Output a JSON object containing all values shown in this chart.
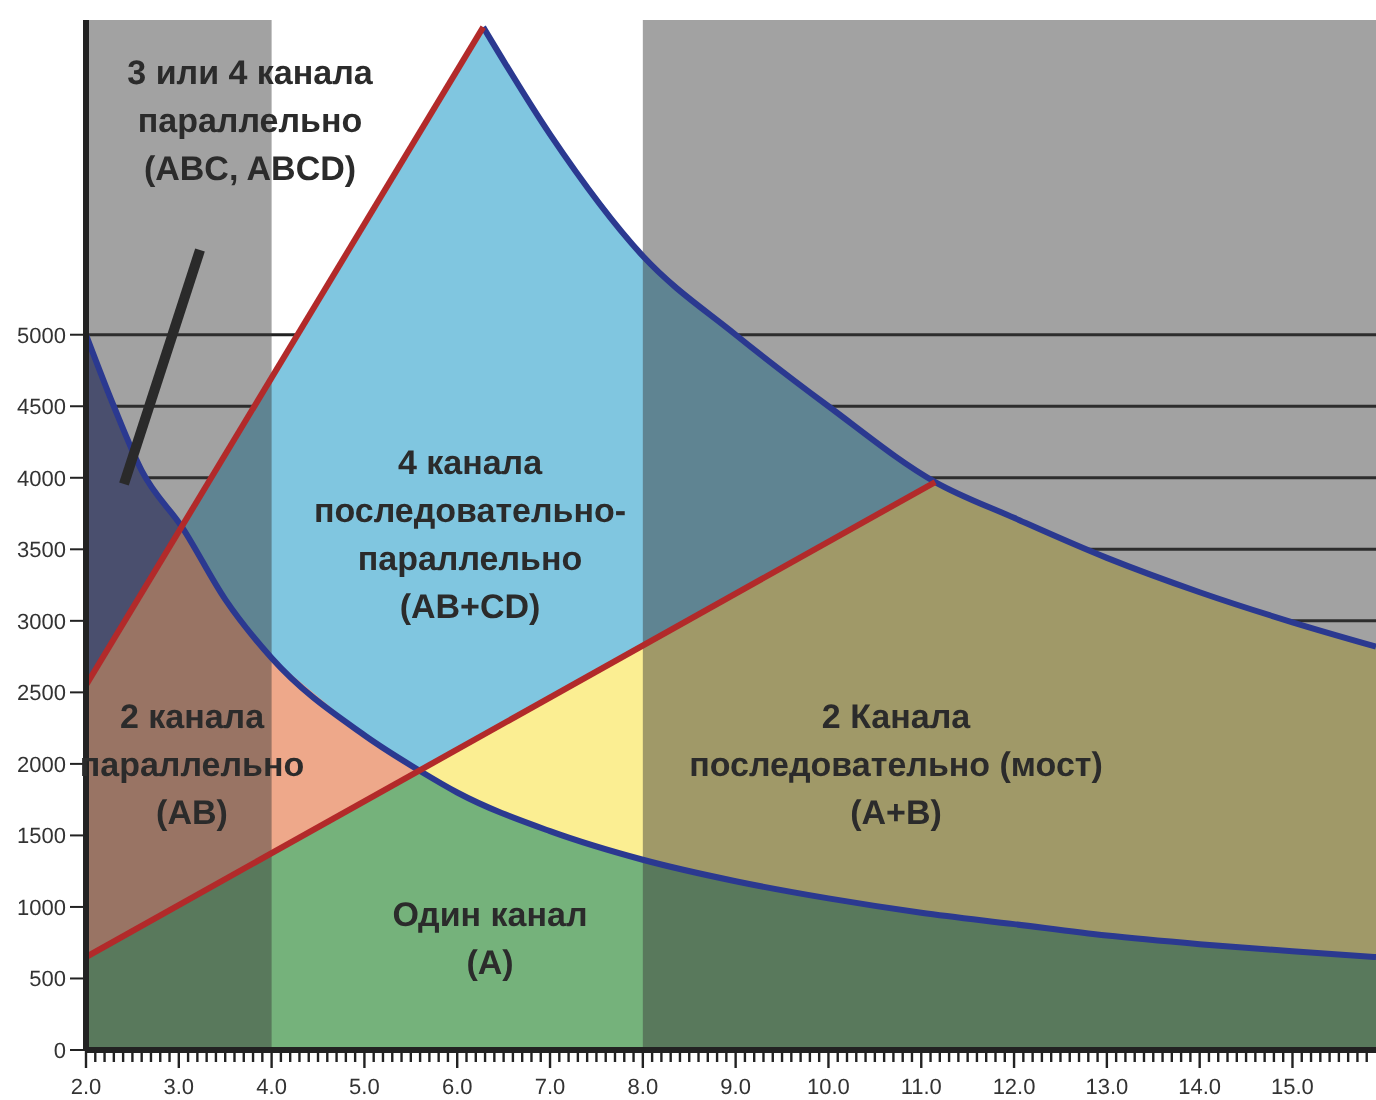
{
  "chart_data": {
    "type": "area",
    "series": [
      {
        "color": "#5a629d",
        "x": [
          2,
          2.3,
          2.6,
          3.04
        ],
        "values": [
          5000,
          4500,
          4050,
          3650
        ]
      },
      {
        "color": "#80c6e0",
        "x": [
          2,
          6.28,
          7,
          8,
          9,
          10,
          11.15
        ],
        "values": [
          2550,
          7150,
          6400,
          5550,
          5000,
          4500,
          3970
        ]
      },
      {
        "color": "#eea88a",
        "x": [
          2,
          3.04,
          3.5,
          4,
          5,
          5.6
        ],
        "values": [
          2550,
          3650,
          3150,
          2740,
          2200,
          1950
        ]
      },
      {
        "color": "#fbee92",
        "x": [
          5.6,
          11.15,
          12,
          13,
          14,
          15,
          15.9
        ],
        "values": [
          1950,
          3970,
          3720,
          3440,
          3200,
          2990,
          2820
        ]
      },
      {
        "color": "#75b27b",
        "x": [
          2,
          4,
          5,
          5.6,
          6,
          7,
          8,
          9,
          10,
          11,
          12,
          13,
          14,
          15,
          15.9
        ],
        "values": [
          650,
          1380,
          1740,
          1950,
          1800,
          1530,
          1330,
          1180,
          1060,
          960,
          880,
          800,
          740,
          690,
          650
        ]
      },
      {
        "type": "line",
        "color": "#2b3990",
        "x": [
          2,
          2.3,
          2.6,
          3.04,
          3.5,
          4,
          5,
          5.6,
          6,
          7,
          8,
          9,
          10,
          11,
          12,
          13,
          14,
          15,
          15.9
        ],
        "values": [
          5000,
          4500,
          4050,
          3650,
          3150,
          2740,
          2200,
          1950,
          1800,
          1530,
          1330,
          1180,
          1060,
          960,
          880,
          800,
          740,
          690,
          650
        ]
      },
      {
        "type": "line",
        "color": "#2b3990",
        "x": [
          6.28,
          7,
          8,
          9,
          10,
          11.15,
          12,
          13,
          14,
          15,
          15.9
        ],
        "values": [
          7150,
          6400,
          5550,
          5000,
          4500,
          3970,
          3720,
          3440,
          3200,
          2990,
          2820
        ]
      },
      {
        "type": "line",
        "color": "#b22a2a",
        "x": [
          2,
          6.28
        ],
        "values": [
          2550,
          7150
        ]
      },
      {
        "type": "line",
        "color": "#b22a2a",
        "x": [
          2,
          11.15
        ],
        "values": [
          650,
          3970
        ]
      }
    ],
    "bands": [
      {
        "axis": "x",
        "from": 2,
        "to": 4,
        "color": "#3a3a3a"
      },
      {
        "axis": "x",
        "from": 8,
        "to": 15.9,
        "color": "#3a3a3a"
      }
    ],
    "annotations": [
      "3 или 4 канала\nпараллельно\n(ABC, ABCD)",
      "4 канала\nпоследовательно-\nпараллельно\n(AB+CD)",
      "2 канала\nпараллельно\n(AB)",
      "2 Канала\nпоследовательно (мост)\n(A+B)",
      "Один канал\n(A)"
    ],
    "xlim": [
      2,
      15.9
    ],
    "xticks": [
      {
        "value": 2,
        "label": "2.0"
      },
      {
        "value": 2.1,
        "label": null
      },
      {
        "value": 2.2,
        "label": null
      },
      {
        "value": 2.3,
        "label": null
      },
      {
        "value": 2.4,
        "label": null
      },
      {
        "value": 2.5,
        "label": null
      },
      {
        "value": 2.6,
        "label": null
      },
      {
        "value": 2.7,
        "label": null
      },
      {
        "value": 2.8,
        "label": null
      },
      {
        "value": 2.9,
        "label": null
      },
      {
        "value": 3,
        "label": "3.0"
      },
      {
        "value": 3.1,
        "label": null
      },
      {
        "value": 3.2,
        "label": null
      },
      {
        "value": 3.3,
        "label": null
      },
      {
        "value": 3.4,
        "label": null
      },
      {
        "value": 3.5,
        "label": null
      },
      {
        "value": 3.6,
        "label": null
      },
      {
        "value": 3.7,
        "label": null
      },
      {
        "value": 3.8,
        "label": null
      },
      {
        "value": 3.9,
        "label": null
      },
      {
        "value": 4,
        "label": "4.0"
      },
      {
        "value": 4.1,
        "label": null
      },
      {
        "value": 4.2,
        "label": null
      },
      {
        "value": 4.3,
        "label": null
      },
      {
        "value": 4.4,
        "label": null
      },
      {
        "value": 4.5,
        "label": null
      },
      {
        "value": 4.6,
        "label": null
      },
      {
        "value": 4.7,
        "label": null
      },
      {
        "value": 4.8,
        "label": null
      },
      {
        "value": 4.9,
        "label": null
      },
      {
        "value": 5,
        "label": "5.0"
      },
      {
        "value": 5.1,
        "label": null
      },
      {
        "value": 5.2,
        "label": null
      },
      {
        "value": 5.3,
        "label": null
      },
      {
        "value": 5.4,
        "label": null
      },
      {
        "value": 5.5,
        "label": null
      },
      {
        "value": 5.6,
        "label": null
      },
      {
        "value": 5.7,
        "label": null
      },
      {
        "value": 5.8,
        "label": null
      },
      {
        "value": 5.9,
        "label": null
      },
      {
        "value": 6,
        "label": "6.0"
      },
      {
        "value": 6.1,
        "label": null
      },
      {
        "value": 6.2,
        "label": null
      },
      {
        "value": 6.3,
        "label": null
      },
      {
        "value": 6.4,
        "label": null
      },
      {
        "value": 6.5,
        "label": null
      },
      {
        "value": 6.6,
        "label": null
      },
      {
        "value": 6.7,
        "label": null
      },
      {
        "value": 6.8,
        "label": null
      },
      {
        "value": 6.9,
        "label": null
      },
      {
        "value": 7,
        "label": "7.0"
      },
      {
        "value": 7.1,
        "label": null
      },
      {
        "value": 7.2,
        "label": null
      },
      {
        "value": 7.3,
        "label": null
      },
      {
        "value": 7.4,
        "label": null
      },
      {
        "value": 7.5,
        "label": null
      },
      {
        "value": 7.6,
        "label": null
      },
      {
        "value": 7.7,
        "label": null
      },
      {
        "value": 7.8,
        "label": null
      },
      {
        "value": 7.9,
        "label": null
      },
      {
        "value": 8,
        "label": "8.0"
      },
      {
        "value": 8.1,
        "label": null
      },
      {
        "value": 8.2,
        "label": null
      },
      {
        "value": 8.3,
        "label": null
      },
      {
        "value": 8.4,
        "label": null
      },
      {
        "value": 8.5,
        "label": null
      },
      {
        "value": 8.6,
        "label": null
      },
      {
        "value": 8.7,
        "label": null
      },
      {
        "value": 8.8,
        "label": null
      },
      {
        "value": 8.9,
        "label": null
      },
      {
        "value": 9,
        "label": "9.0"
      },
      {
        "value": 9.1,
        "label": null
      },
      {
        "value": 9.2,
        "label": null
      },
      {
        "value": 9.3,
        "label": null
      },
      {
        "value": 9.4,
        "label": null
      },
      {
        "value": 9.5,
        "label": null
      },
      {
        "value": 9.6,
        "label": null
      },
      {
        "value": 9.7,
        "label": null
      },
      {
        "value": 9.8,
        "label": null
      },
      {
        "value": 9.9,
        "label": null
      },
      {
        "value": 10,
        "label": "10.0"
      },
      {
        "value": 10.1,
        "label": null
      },
      {
        "value": 10.2,
        "label": null
      },
      {
        "value": 10.3,
        "label": null
      },
      {
        "value": 10.4,
        "label": null
      },
      {
        "value": 10.5,
        "label": null
      },
      {
        "value": 10.6,
        "label": null
      },
      {
        "value": 10.7,
        "label": null
      },
      {
        "value": 10.8,
        "label": null
      },
      {
        "value": 10.9,
        "label": null
      },
      {
        "value": 11,
        "label": "11.0"
      },
      {
        "value": 11.1,
        "label": null
      },
      {
        "value": 11.2,
        "label": null
      },
      {
        "value": 11.3,
        "label": null
      },
      {
        "value": 11.4,
        "label": null
      },
      {
        "value": 11.5,
        "label": null
      },
      {
        "value": 11.6,
        "label": null
      },
      {
        "value": 11.7,
        "label": null
      },
      {
        "value": 11.8,
        "label": null
      },
      {
        "value": 11.9,
        "label": null
      },
      {
        "value": 12,
        "label": "12.0"
      },
      {
        "value": 12.1,
        "label": null
      },
      {
        "value": 12.2,
        "label": null
      },
      {
        "value": 12.3,
        "label": null
      },
      {
        "value": 12.4,
        "label": null
      },
      {
        "value": 12.5,
        "label": null
      },
      {
        "value": 12.6,
        "label": null
      },
      {
        "value": 12.7,
        "label": null
      },
      {
        "value": 12.8,
        "label": null
      },
      {
        "value": 12.9,
        "label": null
      },
      {
        "value": 13,
        "label": "13.0"
      },
      {
        "value": 13.1,
        "label": null
      },
      {
        "value": 13.2,
        "label": null
      },
      {
        "value": 13.3,
        "label": null
      },
      {
        "value": 13.4,
        "label": null
      },
      {
        "value": 13.5,
        "label": null
      },
      {
        "value": 13.6,
        "label": null
      },
      {
        "value": 13.7,
        "label": null
      },
      {
        "value": 13.8,
        "label": null
      },
      {
        "value": 13.9,
        "label": null
      },
      {
        "value": 14,
        "label": "14.0"
      },
      {
        "value": 14.1,
        "label": null
      },
      {
        "value": 14.2,
        "label": null
      },
      {
        "value": 14.3,
        "label": null
      },
      {
        "value": 14.4,
        "label": null
      },
      {
        "value": 14.5,
        "label": null
      },
      {
        "value": 14.6,
        "label": null
      },
      {
        "value": 14.7,
        "label": null
      },
      {
        "value": 14.8,
        "label": null
      },
      {
        "value": 14.9,
        "label": null
      },
      {
        "value": 15,
        "label": "15.0"
      },
      {
        "value": 15.1,
        "label": null
      },
      {
        "value": 15.2,
        "label": null
      },
      {
        "value": 15.3,
        "label": null
      },
      {
        "value": 15.4,
        "label": null
      },
      {
        "value": 15.5,
        "label": null
      },
      {
        "value": 15.6,
        "label": null
      },
      {
        "value": 15.7,
        "label": null
      },
      {
        "value": 15.8,
        "label": null
      }
    ],
    "ylim": [
      0,
      7200
    ],
    "yticks": [
      0,
      500,
      1000,
      1500,
      2000,
      2500,
      3000,
      3500,
      4000,
      4500,
      5000
    ],
    "grid": "y"
  }
}
